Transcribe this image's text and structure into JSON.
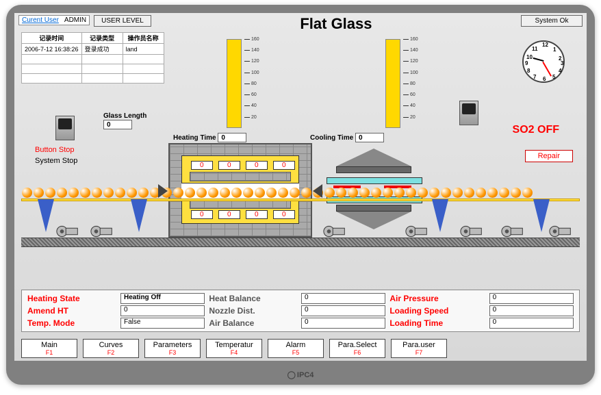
{
  "header": {
    "user_label": "Curent User",
    "user_value": "ADMIN",
    "level_btn": "USER LEVEL",
    "title": "Flat Glass",
    "system_btn": "System Ok"
  },
  "log_table": {
    "headers": [
      "记录时间",
      "记录类型",
      "操作员名称"
    ],
    "rows": [
      [
        "2006-7-12 16:38:26",
        "登录成功",
        "land"
      ]
    ]
  },
  "glass_length": {
    "label": "Glass Length",
    "value": "0"
  },
  "heating_time": {
    "label": "Heating Time",
    "value": "0"
  },
  "cooling_time": {
    "label": "Cooling Time",
    "value": "0"
  },
  "so2": "SO2 OFF",
  "stop": {
    "button": "Button Stop",
    "system": "System Stop"
  },
  "repair": "Repair",
  "heater_vals": [
    "0",
    "0",
    "0",
    "0",
    "0",
    "0",
    "0",
    "0"
  ],
  "scale": {
    "max": 160,
    "step": 20
  },
  "params": {
    "heating_state": {
      "label": "Heating State",
      "value": "Heating Off"
    },
    "heat_balance": {
      "label": "Heat Balance",
      "value": "0"
    },
    "air_pressure": {
      "label": "Air Pressure",
      "value": "0"
    },
    "amend_ht": {
      "label": "Amend  HT",
      "value": "0"
    },
    "nozzle_dist": {
      "label": "Nozzle Dist.",
      "value": "0"
    },
    "loading_speed": {
      "label": "Loading Speed",
      "value": "0"
    },
    "temp_mode": {
      "label": "Temp.   Mode",
      "value": "False"
    },
    "air_balance": {
      "label": "Air Balance",
      "value": "0"
    },
    "loading_time": {
      "label": "Loading Time",
      "value": "0"
    }
  },
  "fkeys": [
    {
      "label": "Main",
      "key": "F1"
    },
    {
      "label": "Curves",
      "key": "F2"
    },
    {
      "label": "Parameters",
      "key": "F3"
    },
    {
      "label": "Temperatur",
      "key": "F4"
    },
    {
      "label": "Alarm",
      "key": "F5"
    },
    {
      "label": "Para.Select",
      "key": "F6"
    },
    {
      "label": "Para.user",
      "key": "F7"
    }
  ],
  "clock": {
    "hour_angle": 195,
    "minute_angle": 60
  },
  "colors": {
    "yellow": "#ffd800",
    "red": "#e00000",
    "cyan": "#7de0e0",
    "blue": "#3a5fc8",
    "brick": "#aaaaaa"
  }
}
